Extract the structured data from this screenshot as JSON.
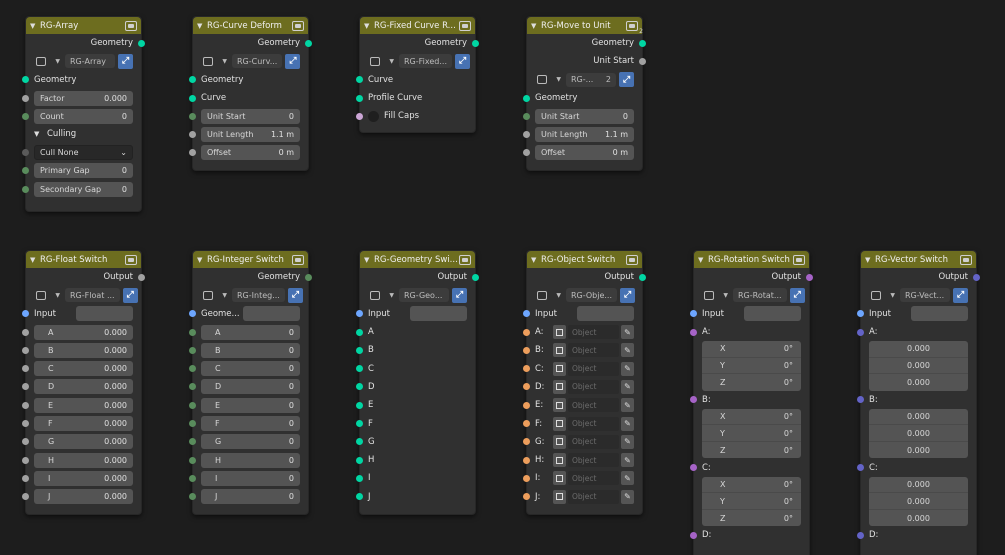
{
  "nodes": {
    "array": {
      "title": "RG-Array",
      "output": "Geometry",
      "group_name": "RG-Array",
      "geometry_label": "Geometry",
      "factor": {
        "label": "Factor",
        "value": "0.000"
      },
      "count": {
        "label": "Count",
        "value": "0"
      },
      "panel": "Culling",
      "cull_mode": "Cull None",
      "primary_gap": {
        "label": "Primary Gap",
        "value": "0"
      },
      "secondary_gap": {
        "label": "Secondary Gap",
        "value": "0"
      }
    },
    "curve_deform": {
      "title": "RG-Curve Deform",
      "output": "Geometry",
      "group_name": "RG-Curv...",
      "inputs": {
        "geometry": "Geometry",
        "curve": "Curve"
      },
      "unit_start": {
        "label": "Unit Start",
        "value": "0"
      },
      "unit_length": {
        "label": "Unit Length",
        "value": "1.1 m"
      },
      "offset": {
        "label": "Offset",
        "value": "0 m"
      }
    },
    "fixed_curve": {
      "title": "RG-Fixed Curve R...",
      "output": "Geometry",
      "group_name": "RG-Fixed...",
      "inputs": {
        "curve": "Curve",
        "profile": "Profile Curve"
      },
      "fill_caps": "Fill Caps"
    },
    "move_to_unit": {
      "title": "RG-Move to Unit",
      "outputs": {
        "geometry": "Geometry",
        "unit_start": "Unit Start"
      },
      "group_name": "RG-...",
      "user_count": "2",
      "geometry_label": "Geometry",
      "unit_start": {
        "label": "Unit Start",
        "value": "0"
      },
      "unit_length": {
        "label": "Unit Length",
        "value": "1.1 m"
      },
      "offset": {
        "label": "Offset",
        "value": "0 m"
      }
    },
    "float_switch": {
      "title": "RG-Float Switch",
      "output": "Output",
      "group_name": "RG-Float ...",
      "input_label": "Input",
      "items": [
        {
          "label": "A",
          "value": "0.000"
        },
        {
          "label": "B",
          "value": "0.000"
        },
        {
          "label": "C",
          "value": "0.000"
        },
        {
          "label": "D",
          "value": "0.000"
        },
        {
          "label": "E",
          "value": "0.000"
        },
        {
          "label": "F",
          "value": "0.000"
        },
        {
          "label": "G",
          "value": "0.000"
        },
        {
          "label": "H",
          "value": "0.000"
        },
        {
          "label": "I",
          "value": "0.000"
        },
        {
          "label": "J",
          "value": "0.000"
        }
      ]
    },
    "integer_switch": {
      "title": "RG-Integer Switch",
      "output": "Geometry",
      "group_name": "RG-Integ...",
      "input_label": "Geome...",
      "items": [
        {
          "label": "A",
          "value": "0"
        },
        {
          "label": "B",
          "value": "0"
        },
        {
          "label": "C",
          "value": "0"
        },
        {
          "label": "D",
          "value": "0"
        },
        {
          "label": "E",
          "value": "0"
        },
        {
          "label": "F",
          "value": "0"
        },
        {
          "label": "G",
          "value": "0"
        },
        {
          "label": "H",
          "value": "0"
        },
        {
          "label": "I",
          "value": "0"
        },
        {
          "label": "J",
          "value": "0"
        }
      ]
    },
    "geometry_switch": {
      "title": "RG-Geometry Swi...",
      "output": "Output",
      "group_name": "RG-Geo...",
      "input_label": "Input",
      "items": [
        "A",
        "B",
        "C",
        "D",
        "E",
        "F",
        "G",
        "H",
        "I",
        "J"
      ]
    },
    "object_switch": {
      "title": "RG-Object Switch",
      "output": "Output",
      "group_name": "RG-Obje...",
      "input_label": "Input",
      "placeholder": "Object",
      "items": [
        "A:",
        "B:",
        "C:",
        "D:",
        "E:",
        "F:",
        "G:",
        "H:",
        "I:",
        "J:"
      ]
    },
    "rotation_switch": {
      "title": "RG-Rotation Switch",
      "output": "Output",
      "group_name": "RG-Rotat...",
      "input_label": "Input",
      "groups": [
        {
          "label": "A:",
          "x": "0°",
          "y": "0°",
          "z": "0°"
        },
        {
          "label": "B:",
          "x": "0°",
          "y": "0°",
          "z": "0°"
        },
        {
          "label": "C:",
          "x": "0°",
          "y": "0°",
          "z": "0°"
        },
        {
          "label": "D:"
        }
      ],
      "axes": {
        "x": "X",
        "y": "Y",
        "z": "Z"
      }
    },
    "vector_switch": {
      "title": "RG-Vector Switch",
      "output": "Output",
      "group_name": "RG-Vect...",
      "input_label": "Input",
      "groups": [
        {
          "label": "A:",
          "values": [
            "0.000",
            "0.000",
            "0.000"
          ]
        },
        {
          "label": "B:",
          "values": [
            "0.000",
            "0.000",
            "0.000"
          ]
        },
        {
          "label": "C:",
          "values": [
            "0.000",
            "0.000",
            "0.000"
          ]
        },
        {
          "label": "D:"
        }
      ]
    }
  },
  "colors": {
    "header": "#6d6d1f",
    "geometry_socket": "#00d6a3",
    "float_socket": "#a1a1a1",
    "int_socket": "#598c5c",
    "object_socket": "#ed9e5c",
    "rotation_socket": "#a663c7",
    "vector_socket": "#6363c7",
    "input_socket": "#6da6ff"
  }
}
